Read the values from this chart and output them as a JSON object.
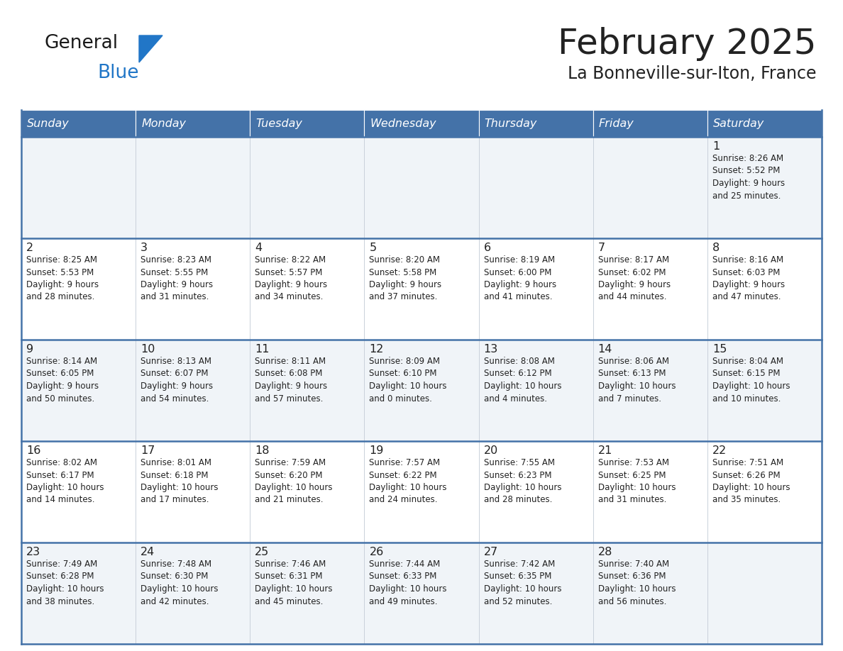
{
  "title": "February 2025",
  "subtitle": "La Bonneville-sur-Iton, France",
  "header_bg": "#4472a8",
  "header_text_color": "#ffffff",
  "day_names": [
    "Sunday",
    "Monday",
    "Tuesday",
    "Wednesday",
    "Thursday",
    "Friday",
    "Saturday"
  ],
  "row_odd_bg": "#f0f4f8",
  "row_even_bg": "#ffffff",
  "border_color": "#4472a8",
  "cell_border_color": "#c8d0da",
  "text_color": "#222222",
  "calendar_data": [
    [
      null,
      null,
      null,
      null,
      null,
      null,
      {
        "day": "1",
        "sunrise": "8:26 AM",
        "sunset": "5:52 PM",
        "daylight": "9 hours\nand 25 minutes."
      }
    ],
    [
      {
        "day": "2",
        "sunrise": "8:25 AM",
        "sunset": "5:53 PM",
        "daylight": "9 hours\nand 28 minutes."
      },
      {
        "day": "3",
        "sunrise": "8:23 AM",
        "sunset": "5:55 PM",
        "daylight": "9 hours\nand 31 minutes."
      },
      {
        "day": "4",
        "sunrise": "8:22 AM",
        "sunset": "5:57 PM",
        "daylight": "9 hours\nand 34 minutes."
      },
      {
        "day": "5",
        "sunrise": "8:20 AM",
        "sunset": "5:58 PM",
        "daylight": "9 hours\nand 37 minutes."
      },
      {
        "day": "6",
        "sunrise": "8:19 AM",
        "sunset": "6:00 PM",
        "daylight": "9 hours\nand 41 minutes."
      },
      {
        "day": "7",
        "sunrise": "8:17 AM",
        "sunset": "6:02 PM",
        "daylight": "9 hours\nand 44 minutes."
      },
      {
        "day": "8",
        "sunrise": "8:16 AM",
        "sunset": "6:03 PM",
        "daylight": "9 hours\nand 47 minutes."
      }
    ],
    [
      {
        "day": "9",
        "sunrise": "8:14 AM",
        "sunset": "6:05 PM",
        "daylight": "9 hours\nand 50 minutes."
      },
      {
        "day": "10",
        "sunrise": "8:13 AM",
        "sunset": "6:07 PM",
        "daylight": "9 hours\nand 54 minutes."
      },
      {
        "day": "11",
        "sunrise": "8:11 AM",
        "sunset": "6:08 PM",
        "daylight": "9 hours\nand 57 minutes."
      },
      {
        "day": "12",
        "sunrise": "8:09 AM",
        "sunset": "6:10 PM",
        "daylight": "10 hours\nand 0 minutes."
      },
      {
        "day": "13",
        "sunrise": "8:08 AM",
        "sunset": "6:12 PM",
        "daylight": "10 hours\nand 4 minutes."
      },
      {
        "day": "14",
        "sunrise": "8:06 AM",
        "sunset": "6:13 PM",
        "daylight": "10 hours\nand 7 minutes."
      },
      {
        "day": "15",
        "sunrise": "8:04 AM",
        "sunset": "6:15 PM",
        "daylight": "10 hours\nand 10 minutes."
      }
    ],
    [
      {
        "day": "16",
        "sunrise": "8:02 AM",
        "sunset": "6:17 PM",
        "daylight": "10 hours\nand 14 minutes."
      },
      {
        "day": "17",
        "sunrise": "8:01 AM",
        "sunset": "6:18 PM",
        "daylight": "10 hours\nand 17 minutes."
      },
      {
        "day": "18",
        "sunrise": "7:59 AM",
        "sunset": "6:20 PM",
        "daylight": "10 hours\nand 21 minutes."
      },
      {
        "day": "19",
        "sunrise": "7:57 AM",
        "sunset": "6:22 PM",
        "daylight": "10 hours\nand 24 minutes."
      },
      {
        "day": "20",
        "sunrise": "7:55 AM",
        "sunset": "6:23 PM",
        "daylight": "10 hours\nand 28 minutes."
      },
      {
        "day": "21",
        "sunrise": "7:53 AM",
        "sunset": "6:25 PM",
        "daylight": "10 hours\nand 31 minutes."
      },
      {
        "day": "22",
        "sunrise": "7:51 AM",
        "sunset": "6:26 PM",
        "daylight": "10 hours\nand 35 minutes."
      }
    ],
    [
      {
        "day": "23",
        "sunrise": "7:49 AM",
        "sunset": "6:28 PM",
        "daylight": "10 hours\nand 38 minutes."
      },
      {
        "day": "24",
        "sunrise": "7:48 AM",
        "sunset": "6:30 PM",
        "daylight": "10 hours\nand 42 minutes."
      },
      {
        "day": "25",
        "sunrise": "7:46 AM",
        "sunset": "6:31 PM",
        "daylight": "10 hours\nand 45 minutes."
      },
      {
        "day": "26",
        "sunrise": "7:44 AM",
        "sunset": "6:33 PM",
        "daylight": "10 hours\nand 49 minutes."
      },
      {
        "day": "27",
        "sunrise": "7:42 AM",
        "sunset": "6:35 PM",
        "daylight": "10 hours\nand 52 minutes."
      },
      {
        "day": "28",
        "sunrise": "7:40 AM",
        "sunset": "6:36 PM",
        "daylight": "10 hours\nand 56 minutes."
      },
      null
    ]
  ],
  "logo_general_color": "#1a1a1a",
  "logo_blue_color": "#2176c7",
  "logo_triangle_color": "#2176c7"
}
